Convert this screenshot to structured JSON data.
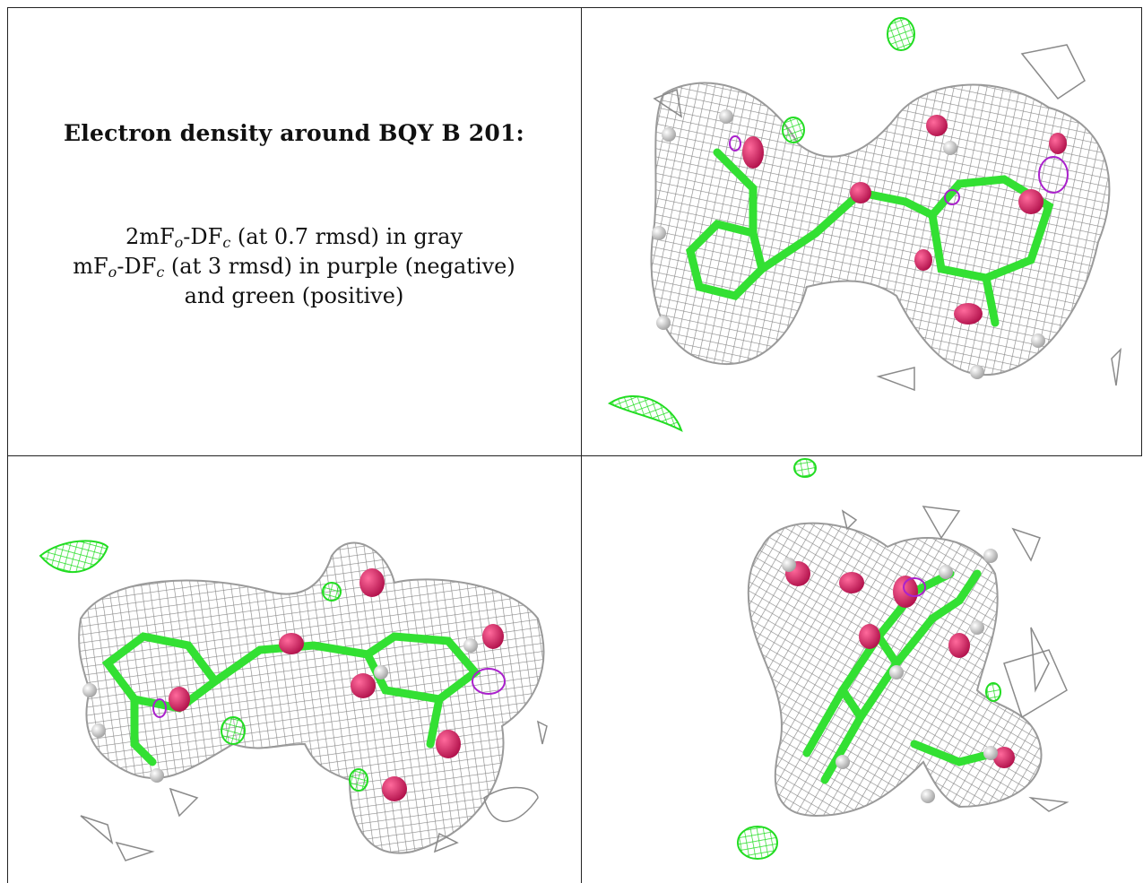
{
  "caption": {
    "title": "Electron density around BQY B 201:",
    "line1": {
      "a": "2mF",
      "o": "o",
      "b": "-DF",
      "c": "c",
      "rest": " (at 0.7 rmsd) in gray"
    },
    "line2": {
      "a": "mF",
      "o": "o",
      "b": "-DF",
      "c": "c",
      "rest": " (at 3 rmsd) in purple (negative)"
    },
    "line3": "and green (positive)"
  },
  "colors": {
    "mesh_gray": "#9a9a9a",
    "positive_green": "#22dd22",
    "negative_purple": "#aa22cc",
    "oxygen_red": "#d81b60",
    "hydrogen_white": "#e8e8e8"
  },
  "panels": [
    {
      "name": "view-top-right"
    },
    {
      "name": "view-bottom-left"
    },
    {
      "name": "view-bottom-right"
    }
  ]
}
